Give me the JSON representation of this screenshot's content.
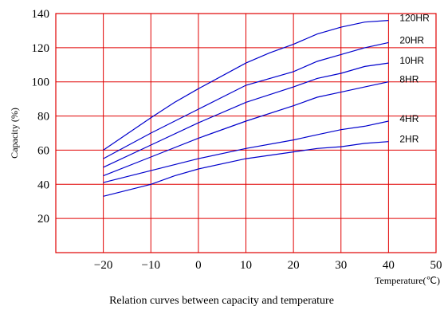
{
  "chart_data": {
    "type": "line",
    "title": "Relation curves between capacity and temperature",
    "xlabel": "Temperature(℃)",
    "ylabel": "Capacity (%)",
    "xlim": [
      -30,
      50
    ],
    "ylim": [
      0,
      140
    ],
    "x_ticks": [
      -20,
      -10,
      0,
      10,
      20,
      30,
      40,
      50
    ],
    "x_tick_labels": [
      "−20",
      "−10",
      "0",
      "10",
      "20",
      "30",
      "40",
      "50"
    ],
    "y_ticks": [
      20,
      40,
      60,
      80,
      100,
      120,
      140
    ],
    "y_tick_labels": [
      "20",
      "40",
      "60",
      "80",
      "100",
      "120",
      "140"
    ],
    "grid": true,
    "line_color": "#0000cc",
    "grid_color": "#e00000",
    "series": [
      {
        "name": "120HR",
        "x": [
          -20,
          -10,
          -5,
          0,
          10,
          15,
          20,
          25,
          30,
          35,
          40
        ],
        "y": [
          60,
          79,
          88,
          96,
          111,
          117,
          122,
          128,
          132,
          135,
          136
        ]
      },
      {
        "name": "20HR",
        "x": [
          -20,
          -10,
          0,
          10,
          20,
          25,
          30,
          35,
          40
        ],
        "y": [
          55,
          70,
          84,
          98,
          106,
          112,
          116,
          120,
          123
        ]
      },
      {
        "name": "10HR",
        "x": [
          -20,
          -10,
          0,
          10,
          20,
          25,
          30,
          35,
          40
        ],
        "y": [
          50,
          63,
          76,
          88,
          97,
          102,
          105,
          109,
          111
        ]
      },
      {
        "name": "8HR",
        "x": [
          -20,
          -10,
          0,
          10,
          20,
          25,
          30,
          35,
          40
        ],
        "y": [
          45,
          56,
          67,
          77,
          86,
          91,
          94,
          97,
          100
        ]
      },
      {
        "name": "4HR",
        "x": [
          -20,
          -10,
          0,
          10,
          20,
          25,
          30,
          35,
          40
        ],
        "y": [
          41,
          48,
          55,
          61,
          66,
          69,
          72,
          74,
          77
        ]
      },
      {
        "name": "2HR",
        "x": [
          -20,
          -10,
          -5,
          0,
          10,
          20,
          25,
          30,
          35,
          40
        ],
        "y": [
          33,
          40,
          45,
          49,
          55,
          59,
          61,
          62,
          64,
          65
        ]
      }
    ]
  }
}
